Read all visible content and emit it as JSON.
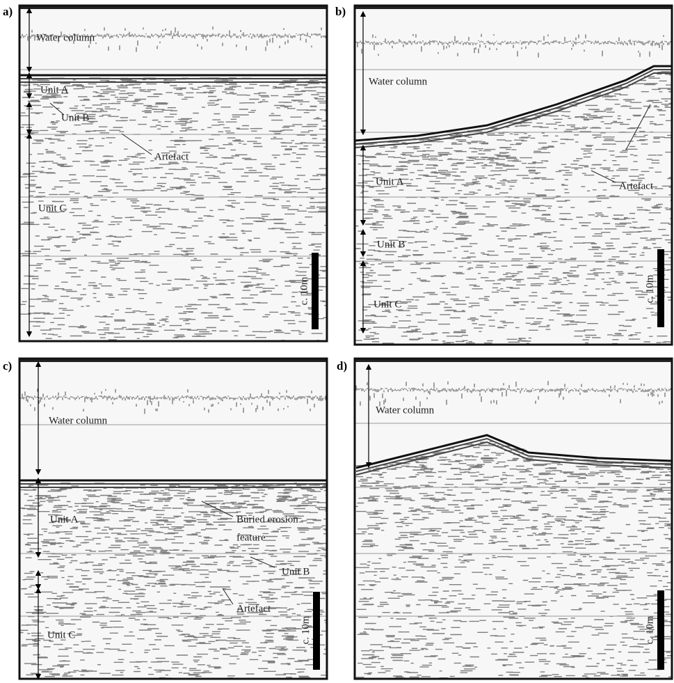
{
  "panels": [
    {
      "label": "a)",
      "annotations": [
        "Water column",
        "Unit A",
        "Unit B",
        "Artefact",
        "Unit C"
      ],
      "scale_bar": "c. 10m"
    },
    {
      "label": "b)",
      "annotations": [
        "Water column",
        "Unit A",
        "Unit B",
        "Artefact",
        "Unit C"
      ],
      "scale_bar": "c. 10m"
    },
    {
      "label": "c)",
      "annotations": [
        "Water column",
        "Unit A",
        "Buried erosion",
        "feature",
        "Unit B",
        "Artefact",
        "Unit C"
      ],
      "scale_bar": "c. 10m"
    },
    {
      "label": "d)",
      "annotations": [
        "Water column"
      ],
      "scale_bar": "c. 10m"
    }
  ]
}
